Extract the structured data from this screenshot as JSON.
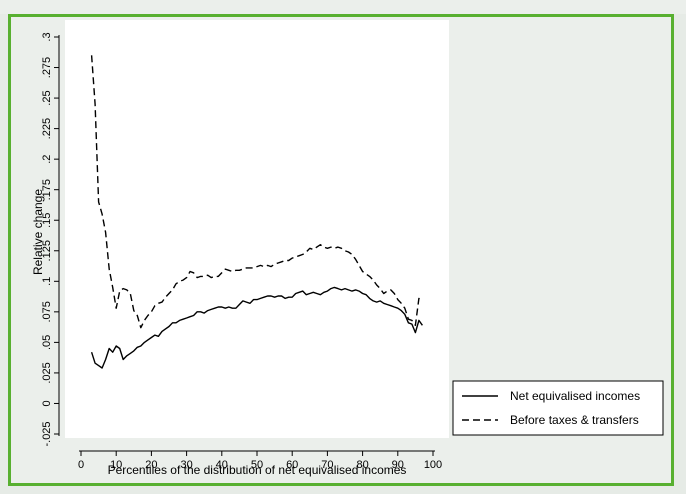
{
  "chart_data": {
    "type": "line",
    "title": "",
    "xlabel": "Percentiles of the distribution of net equivalised incomes",
    "ylabel": "Relative change",
    "xlim": [
      0,
      100
    ],
    "ylim": [
      -0.025,
      0.3
    ],
    "x_ticks": [
      0,
      10,
      20,
      30,
      40,
      50,
      60,
      70,
      80,
      90,
      100
    ],
    "x_tick_labels": [
      "0",
      "10",
      "20",
      "30",
      "40",
      "50",
      "60",
      "70",
      "80",
      "90",
      "100"
    ],
    "y_ticks": [
      -0.025,
      0,
      0.025,
      0.05,
      0.075,
      0.1,
      0.125,
      0.15,
      0.175,
      0.2,
      0.225,
      0.25,
      0.275,
      0.3
    ],
    "y_tick_labels": [
      "-.025",
      "0",
      ".025",
      ".05",
      ".075",
      ".1",
      ".125",
      ".15",
      ".175",
      ".2",
      ".225",
      ".25",
      ".275",
      ".3"
    ],
    "grid": false,
    "legend_position": "bottom-right",
    "series": [
      {
        "name": "Net equivalised incomes",
        "style": "solid",
        "x": [
          3,
          4,
          5,
          6,
          7,
          8,
          9,
          10,
          11,
          12,
          13,
          14,
          15,
          16,
          17,
          18,
          19,
          20,
          21,
          22,
          23,
          24,
          25,
          26,
          27,
          28,
          29,
          30,
          31,
          32,
          33,
          34,
          35,
          36,
          37,
          38,
          39,
          40,
          41,
          42,
          43,
          44,
          45,
          46,
          47,
          48,
          49,
          50,
          51,
          52,
          53,
          54,
          55,
          56,
          57,
          58,
          59,
          60,
          61,
          62,
          63,
          64,
          65,
          66,
          67,
          68,
          69,
          70,
          71,
          72,
          73,
          74,
          75,
          76,
          77,
          78,
          79,
          80,
          81,
          82,
          83,
          84,
          85,
          86,
          87,
          88,
          89,
          90,
          91,
          92,
          93,
          94,
          95,
          96,
          97
        ],
        "y": [
          0.042,
          0.033,
          0.031,
          0.029,
          0.036,
          0.045,
          0.042,
          0.047,
          0.045,
          0.036,
          0.039,
          0.041,
          0.043,
          0.046,
          0.047,
          0.05,
          0.052,
          0.054,
          0.056,
          0.055,
          0.059,
          0.061,
          0.063,
          0.066,
          0.066,
          0.068,
          0.069,
          0.07,
          0.071,
          0.072,
          0.075,
          0.075,
          0.074,
          0.076,
          0.077,
          0.078,
          0.079,
          0.079,
          0.078,
          0.079,
          0.078,
          0.078,
          0.081,
          0.084,
          0.083,
          0.082,
          0.085,
          0.085,
          0.086,
          0.087,
          0.088,
          0.088,
          0.087,
          0.088,
          0.088,
          0.086,
          0.087,
          0.087,
          0.09,
          0.091,
          0.092,
          0.089,
          0.09,
          0.091,
          0.09,
          0.089,
          0.091,
          0.092,
          0.094,
          0.095,
          0.094,
          0.093,
          0.094,
          0.093,
          0.092,
          0.093,
          0.092,
          0.09,
          0.089,
          0.086,
          0.084,
          0.083,
          0.084,
          0.082,
          0.081,
          0.08,
          0.079,
          0.078,
          0.076,
          0.073,
          0.066,
          0.065,
          0.058,
          0.068,
          0.064
        ]
      },
      {
        "name": "Before taxes & transfers",
        "style": "dashed",
        "x": [
          3,
          4,
          5,
          6,
          7,
          8,
          9,
          10,
          11,
          12,
          13,
          14,
          15,
          16,
          17,
          18,
          19,
          20,
          21,
          22,
          23,
          24,
          25,
          26,
          27,
          28,
          29,
          30,
          31,
          32,
          33,
          34,
          35,
          36,
          37,
          38,
          39,
          40,
          41,
          42,
          43,
          44,
          45,
          46,
          47,
          48,
          49,
          50,
          51,
          52,
          53,
          54,
          55,
          56,
          57,
          58,
          59,
          60,
          61,
          62,
          63,
          64,
          65,
          66,
          67,
          68,
          69,
          70,
          71,
          72,
          73,
          74,
          75,
          76,
          77,
          78,
          79,
          80,
          81,
          82,
          83,
          84,
          85,
          86,
          87,
          88,
          89,
          90,
          91,
          92,
          93,
          94,
          95,
          96,
          97
        ],
        "y": [
          0.285,
          0.245,
          0.165,
          0.155,
          0.14,
          0.11,
          0.095,
          0.078,
          0.092,
          0.094,
          0.093,
          0.09,
          0.076,
          0.072,
          0.062,
          0.068,
          0.072,
          0.075,
          0.08,
          0.082,
          0.083,
          0.087,
          0.09,
          0.093,
          0.098,
          0.1,
          0.101,
          0.103,
          0.108,
          0.107,
          0.103,
          0.104,
          0.104,
          0.105,
          0.103,
          0.104,
          0.104,
          0.107,
          0.11,
          0.109,
          0.108,
          0.109,
          0.109,
          0.11,
          0.111,
          0.111,
          0.111,
          0.112,
          0.113,
          0.112,
          0.113,
          0.112,
          0.114,
          0.115,
          0.116,
          0.117,
          0.117,
          0.119,
          0.12,
          0.121,
          0.122,
          0.124,
          0.127,
          0.126,
          0.128,
          0.13,
          0.128,
          0.127,
          0.128,
          0.127,
          0.128,
          0.127,
          0.125,
          0.124,
          0.122,
          0.118,
          0.113,
          0.108,
          0.106,
          0.104,
          0.101,
          0.097,
          0.094,
          0.09,
          0.092,
          0.093,
          0.09,
          0.085,
          0.082,
          0.078,
          0.069,
          0.068,
          0.064,
          0.086,
          0.084
        ]
      }
    ]
  }
}
